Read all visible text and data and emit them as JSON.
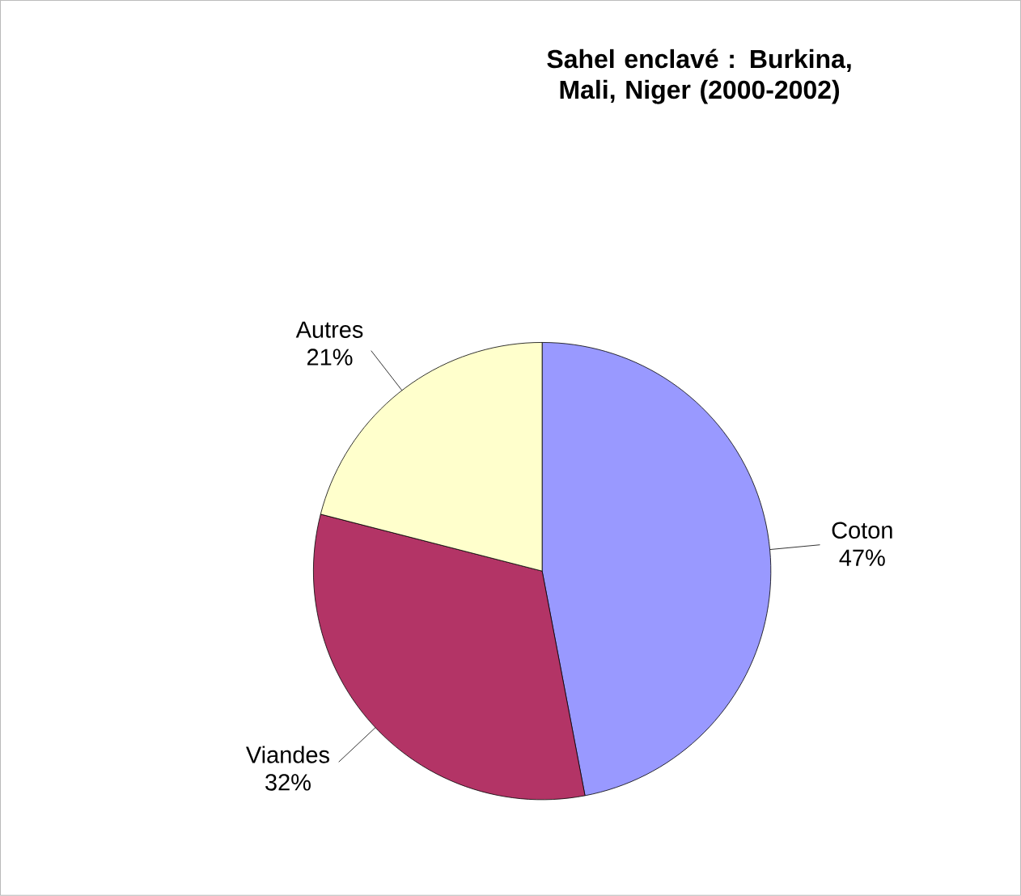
{
  "chart_data": {
    "type": "pie",
    "title": "Sahel enclavé : Burkina, Mali, Niger (2000-2002)",
    "categories": [
      "Coton",
      "Viandes",
      "Autres"
    ],
    "values": [
      47,
      32,
      21
    ],
    "colors": [
      "#9999ff",
      "#b33466",
      "#ffffcc"
    ],
    "value_labels": [
      "47%",
      "32%",
      "21%"
    ]
  }
}
